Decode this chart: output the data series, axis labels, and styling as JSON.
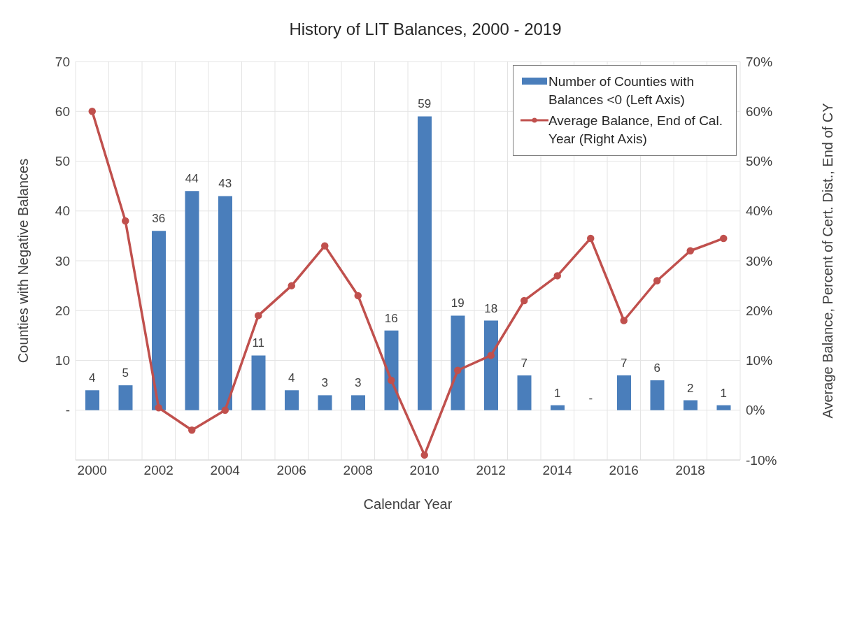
{
  "chart_data": {
    "type": "bar",
    "title": "History of LIT Balances, 2000 - 2019",
    "xlabel": "Calendar Year",
    "ylabel": "Counties with Negative Balances",
    "y2label": "Average Balance, Percent of Cert. Dist., End of CY",
    "categories": [
      "2000",
      null,
      "2002",
      null,
      "2004",
      null,
      "2006",
      null,
      "2008",
      null,
      "2010",
      null,
      "2012",
      null,
      "2014",
      null,
      "2016",
      null,
      "2018",
      null
    ],
    "series": [
      {
        "name": "Number of Counties with Balances <0 (Left Axis)",
        "color": "#4a7ebb",
        "values": [
          4,
          5,
          36,
          44,
          43,
          11,
          4,
          3,
          3,
          16,
          59,
          19,
          18,
          7,
          1,
          0,
          7,
          6,
          2,
          1
        ],
        "value_labels": [
          "4",
          "5",
          "36",
          "44",
          "43",
          "11",
          "4",
          "3",
          "3",
          "16",
          "59",
          "19",
          "18",
          "7",
          "1",
          "-",
          "7",
          "6",
          "2",
          "1"
        ]
      },
      {
        "name": "Average Balance, End of Cal. Year (Right Axis)",
        "type": "line",
        "axis": "y2",
        "color": "#c0504d",
        "marker": "circle",
        "line_style": "solid",
        "values": [
          60,
          38,
          0.5,
          -4,
          0,
          19,
          25,
          33,
          23,
          6,
          -9,
          8,
          11,
          22,
          27,
          34.5,
          18,
          26,
          32,
          34.5
        ]
      }
    ],
    "ylim": [
      -10,
      70
    ],
    "yticks": [
      {
        "value": -10,
        "label": null
      },
      {
        "value": 0,
        "label": "-"
      },
      10,
      20,
      30,
      40,
      50,
      60,
      70
    ],
    "y2lim": [
      -10,
      70
    ],
    "y2ticks": [
      {
        "value": -10,
        "label": "-10%"
      },
      {
        "value": 0,
        "label": "0%"
      },
      {
        "value": 10,
        "label": "10%"
      },
      {
        "value": 20,
        "label": "20%"
      },
      {
        "value": 30,
        "label": "30%"
      },
      {
        "value": 40,
        "label": "40%"
      },
      {
        "value": 50,
        "label": "50%"
      },
      {
        "value": 60,
        "label": "60%"
      },
      {
        "value": 70,
        "label": "70%"
      }
    ],
    "grid": true,
    "legend": "top right"
  }
}
